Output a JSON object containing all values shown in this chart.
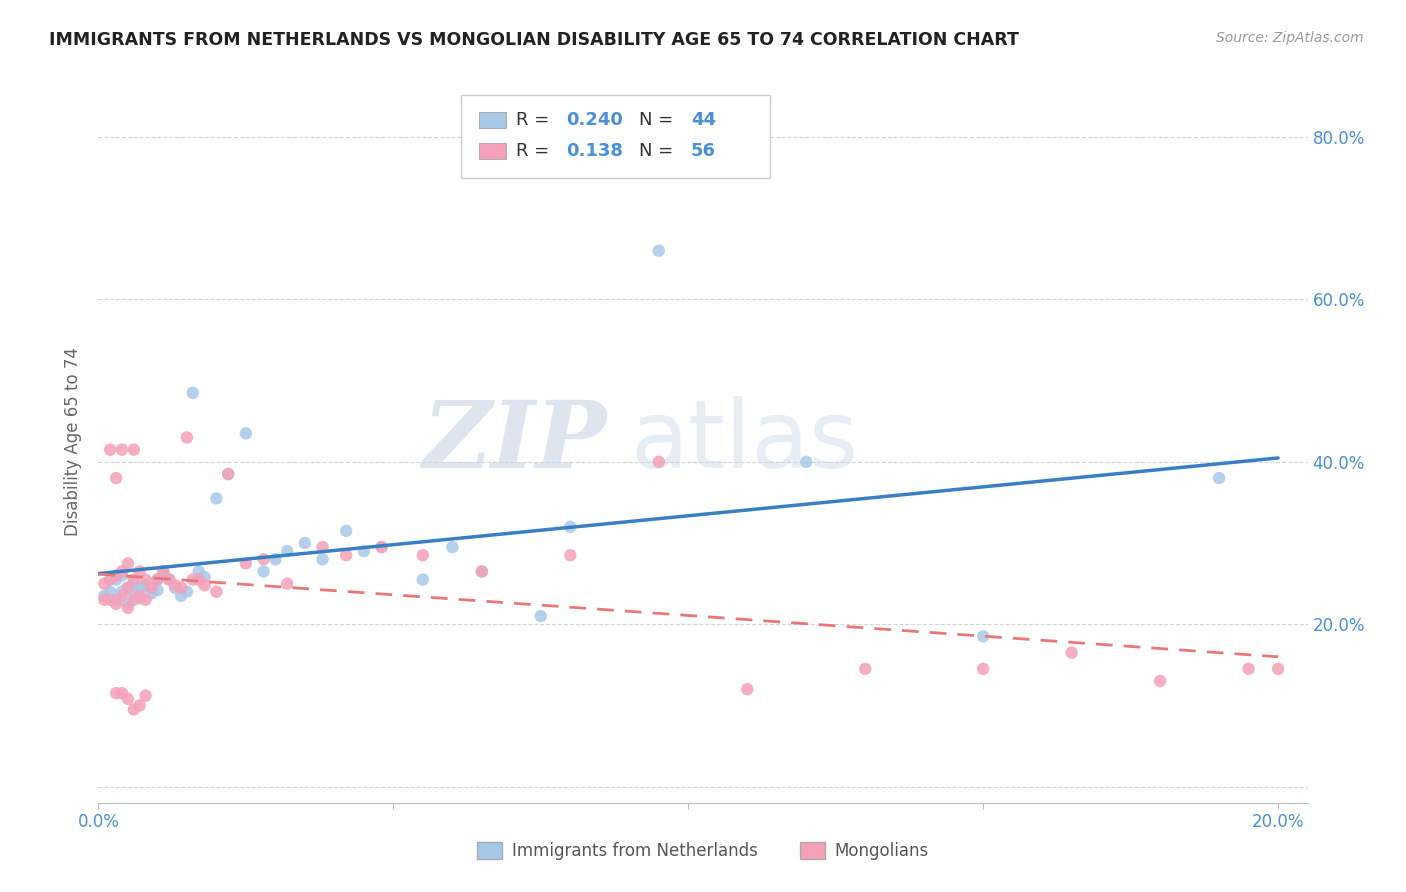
{
  "title": "IMMIGRANTS FROM NETHERLANDS VS MONGOLIAN DISABILITY AGE 65 TO 74 CORRELATION CHART",
  "source_text": "Source: ZipAtlas.com",
  "ylabel": "Disability Age 65 to 74",
  "legend_r1": "0.240",
  "legend_n1": "44",
  "legend_r2": "0.138",
  "legend_n2": "56",
  "series1_name": "Immigrants from Netherlands",
  "series2_name": "Mongolians",
  "color1": "#a8c8e8",
  "color2": "#f4a0b8",
  "line1_color": "#3a7fc1",
  "line2_color": "#e87878",
  "background_color": "#ffffff",
  "grid_color": "#cccccc",
  "watermark_zip": "ZIP",
  "watermark_atlas": "atlas",
  "xlim": [
    0.0,
    0.205
  ],
  "ylim": [
    -0.02,
    0.87
  ],
  "yticks": [
    0.0,
    0.2,
    0.4,
    0.6,
    0.8
  ],
  "ytick_labels": [
    "",
    "20.0%",
    "40.0%",
    "60.0%",
    "80.0%"
  ],
  "xticks": [
    0.0,
    0.05,
    0.1,
    0.15,
    0.2
  ],
  "xtick_labels": [
    "0.0%",
    "",
    "",
    "",
    "20.0%"
  ],
  "scatter1_x": [
    0.001,
    0.002,
    0.003,
    0.003,
    0.004,
    0.004,
    0.005,
    0.005,
    0.006,
    0.006,
    0.007,
    0.007,
    0.008,
    0.009,
    0.01,
    0.01,
    0.011,
    0.012,
    0.013,
    0.014,
    0.015,
    0.016,
    0.017,
    0.018,
    0.02,
    0.022,
    0.025,
    0.028,
    0.03,
    0.032,
    0.035,
    0.038,
    0.042,
    0.045,
    0.048,
    0.055,
    0.06,
    0.065,
    0.075,
    0.08,
    0.095,
    0.12,
    0.15,
    0.19
  ],
  "scatter1_y": [
    0.235,
    0.24,
    0.255,
    0.23,
    0.26,
    0.24,
    0.245,
    0.225,
    0.238,
    0.25,
    0.242,
    0.232,
    0.248,
    0.238,
    0.242,
    0.255,
    0.265,
    0.255,
    0.245,
    0.235,
    0.24,
    0.485,
    0.265,
    0.258,
    0.355,
    0.385,
    0.435,
    0.265,
    0.28,
    0.29,
    0.3,
    0.28,
    0.315,
    0.29,
    0.295,
    0.255,
    0.295,
    0.265,
    0.21,
    0.32,
    0.66,
    0.4,
    0.185,
    0.38
  ],
  "scatter2_x": [
    0.001,
    0.001,
    0.002,
    0.002,
    0.002,
    0.003,
    0.003,
    0.003,
    0.004,
    0.004,
    0.004,
    0.005,
    0.005,
    0.005,
    0.006,
    0.006,
    0.006,
    0.007,
    0.007,
    0.008,
    0.008,
    0.009,
    0.01,
    0.011,
    0.012,
    0.013,
    0.014,
    0.015,
    0.016,
    0.017,
    0.018,
    0.02,
    0.022,
    0.025,
    0.028,
    0.032,
    0.038,
    0.042,
    0.048,
    0.055,
    0.065,
    0.08,
    0.095,
    0.11,
    0.13,
    0.15,
    0.165,
    0.18,
    0.195,
    0.2,
    0.003,
    0.004,
    0.005,
    0.006,
    0.007,
    0.008
  ],
  "scatter2_y": [
    0.25,
    0.23,
    0.415,
    0.255,
    0.23,
    0.38,
    0.26,
    0.225,
    0.415,
    0.265,
    0.235,
    0.275,
    0.245,
    0.22,
    0.415,
    0.255,
    0.23,
    0.265,
    0.235,
    0.255,
    0.23,
    0.245,
    0.255,
    0.265,
    0.255,
    0.248,
    0.245,
    0.43,
    0.255,
    0.255,
    0.248,
    0.24,
    0.385,
    0.275,
    0.28,
    0.25,
    0.295,
    0.285,
    0.295,
    0.285,
    0.265,
    0.285,
    0.4,
    0.12,
    0.145,
    0.145,
    0.165,
    0.13,
    0.145,
    0.145,
    0.115,
    0.115,
    0.108,
    0.095,
    0.1,
    0.112
  ]
}
